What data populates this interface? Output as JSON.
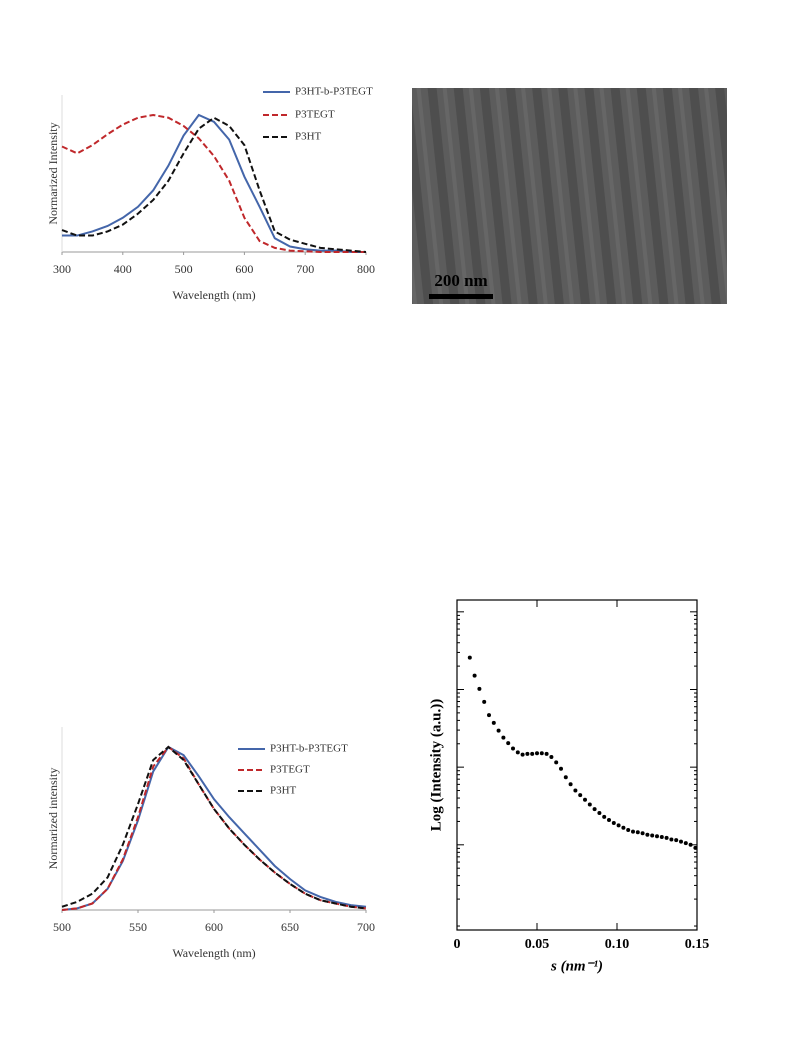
{
  "chart_data": [
    {
      "type": "line",
      "x_label": "Wavelength (nm)",
      "y_label": "Normarized Intensity",
      "x": [
        300,
        325,
        350,
        375,
        400,
        425,
        450,
        475,
        500,
        525,
        550,
        575,
        600,
        625,
        650,
        675,
        700,
        725,
        750,
        775,
        800
      ],
      "xlim": [
        300,
        800
      ],
      "xticks": [
        300,
        400,
        500,
        600,
        700,
        800
      ],
      "ylim": [
        0,
        1
      ],
      "legend": "top-right",
      "series": [
        {
          "name": "P3HT-b-P3TEGT",
          "color": "#4466aa",
          "linestyle": "solid",
          "values": [
            0.12,
            0.12,
            0.15,
            0.19,
            0.25,
            0.33,
            0.45,
            0.63,
            0.85,
            1.0,
            0.95,
            0.82,
            0.55,
            0.33,
            0.1,
            0.04,
            0.02,
            0.01,
            0.01,
            0.0,
            0.0
          ]
        },
        {
          "name": "P3TEGT",
          "color": "#c0282b",
          "linestyle": "dashed",
          "values": [
            0.77,
            0.72,
            0.78,
            0.86,
            0.93,
            0.98,
            1.0,
            0.98,
            0.92,
            0.83,
            0.7,
            0.52,
            0.25,
            0.08,
            0.03,
            0.01,
            0.005,
            0.0,
            0.0,
            0.0,
            0.0
          ]
        },
        {
          "name": "P3HT",
          "color": "#111111",
          "linestyle": "dashed",
          "values": [
            0.16,
            0.12,
            0.12,
            0.15,
            0.2,
            0.28,
            0.38,
            0.52,
            0.72,
            0.9,
            0.98,
            0.92,
            0.78,
            0.45,
            0.15,
            0.09,
            0.06,
            0.03,
            0.02,
            0.01,
            0.0
          ]
        }
      ]
    },
    {
      "type": "line",
      "x_label": "Wavelength (nm)",
      "y_label": "Normarized intensity",
      "x": [
        500,
        510,
        520,
        530,
        540,
        550,
        560,
        570,
        580,
        590,
        600,
        610,
        620,
        630,
        640,
        650,
        660,
        670,
        680,
        690,
        700
      ],
      "xlim": [
        500,
        700
      ],
      "xticks": [
        500,
        550,
        600,
        650,
        700
      ],
      "ylim": [
        0,
        1
      ],
      "legend": "top-right",
      "series": [
        {
          "name": "P3HT-b-P3TEGT",
          "color": "#4466aa",
          "linestyle": "solid",
          "values": [
            0,
            0.01,
            0.04,
            0.13,
            0.3,
            0.55,
            0.85,
            1.0,
            0.95,
            0.82,
            0.68,
            0.57,
            0.47,
            0.37,
            0.27,
            0.19,
            0.12,
            0.08,
            0.05,
            0.03,
            0.02
          ]
        },
        {
          "name": "P3TEGT",
          "color": "#c0282b",
          "linestyle": "dashed",
          "values": [
            0,
            0.01,
            0.04,
            0.13,
            0.31,
            0.57,
            0.88,
            1.0,
            0.93,
            0.77,
            0.62,
            0.5,
            0.4,
            0.31,
            0.23,
            0.16,
            0.1,
            0.06,
            0.04,
            0.02,
            0.01
          ]
        },
        {
          "name": "P3HT",
          "color": "#111111",
          "linestyle": "dashed",
          "values": [
            0.02,
            0.05,
            0.1,
            0.2,
            0.4,
            0.65,
            0.92,
            1.0,
            0.92,
            0.77,
            0.62,
            0.5,
            0.4,
            0.31,
            0.23,
            0.16,
            0.1,
            0.06,
            0.04,
            0.02,
            0.01
          ]
        }
      ]
    },
    {
      "type": "scatter",
      "x_label": "s (nm⁻¹)",
      "y_label": "Log (Intensity (a.u.))",
      "log_y": true,
      "xlim": [
        0,
        0.15
      ],
      "xticks": [
        0,
        0.05,
        {
          "value": 0.1,
          "label": "0.10"
        },
        0.15
      ],
      "ylim": [
        0.08,
        1420
      ],
      "yticks": [
        1,
        10,
        100,
        1000
      ],
      "color": "#000000",
      "x": [
        0.008,
        0.011,
        0.014,
        0.017,
        0.02,
        0.023,
        0.026,
        0.029,
        0.032,
        0.035,
        0.038,
        0.041,
        0.044,
        0.047,
        0.05,
        0.053,
        0.056,
        0.059,
        0.062,
        0.065,
        0.068,
        0.071,
        0.074,
        0.077,
        0.08,
        0.083,
        0.086,
        0.089,
        0.092,
        0.095,
        0.098,
        0.101,
        0.104,
        0.107,
        0.11,
        0.113,
        0.116,
        0.119,
        0.122,
        0.125,
        0.128,
        0.131,
        0.134,
        0.137,
        0.14,
        0.143,
        0.146,
        0.149
      ],
      "values": [
        257,
        151,
        102,
        69.2,
        46.8,
        37.2,
        29.5,
        24.0,
        20.4,
        17.4,
        15.5,
        14.5,
        14.8,
        14.8,
        15.1,
        15.1,
        14.8,
        13.5,
        11.5,
        9.55,
        7.41,
        6.03,
        5.01,
        4.37,
        3.8,
        3.31,
        2.88,
        2.57,
        2.29,
        2.09,
        1.91,
        1.78,
        1.66,
        1.55,
        1.48,
        1.45,
        1.41,
        1.35,
        1.32,
        1.29,
        1.26,
        1.23,
        1.17,
        1.15,
        1.1,
        1.05,
        1.0,
        0.912
      ]
    }
  ],
  "tem_image": {
    "scale_bar_label": "200 nm"
  }
}
